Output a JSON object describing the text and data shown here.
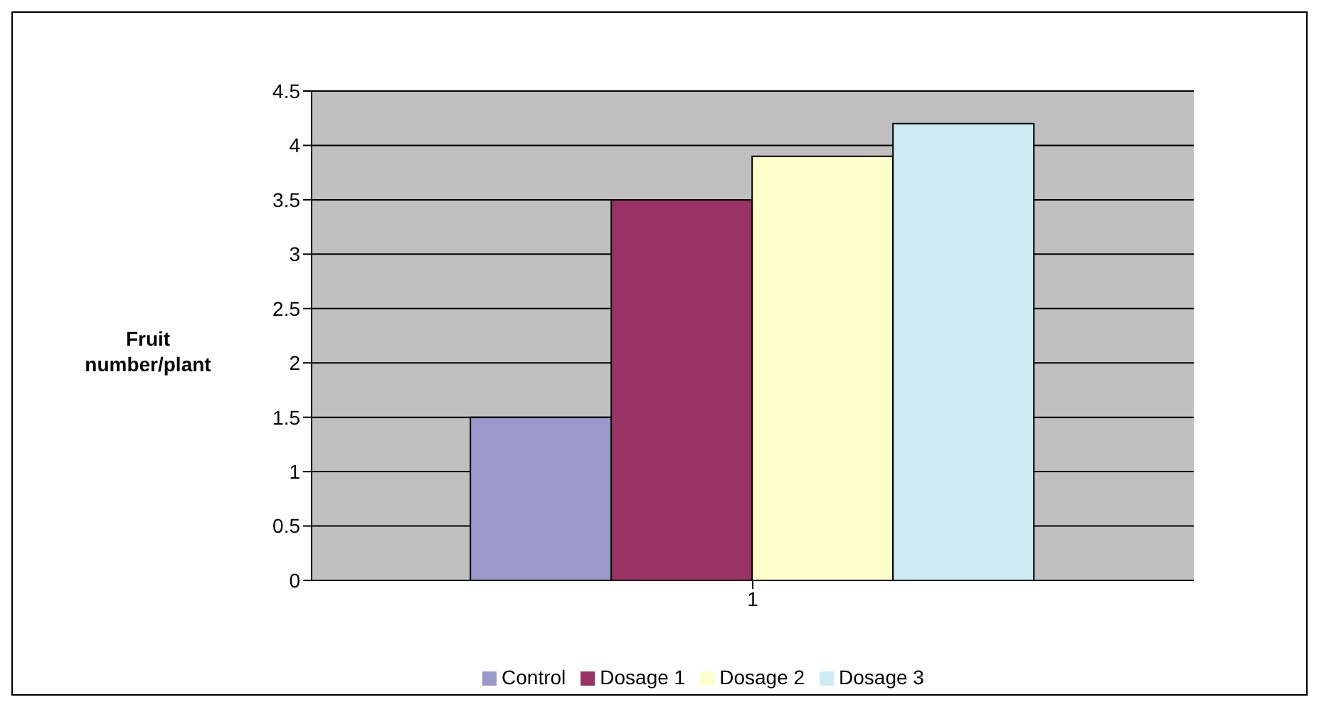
{
  "chart_data": {
    "type": "bar",
    "ylabel": "Fruit number/plant",
    "categories": [
      "1"
    ],
    "series": [
      {
        "name": "Control",
        "color": "#9999cc",
        "values": [
          1.5
        ]
      },
      {
        "name": "Dosage 1",
        "color": "#993366",
        "values": [
          3.5
        ]
      },
      {
        "name": "Dosage 2",
        "color": "#ffffcc",
        "values": [
          3.9
        ]
      },
      {
        "name": "Dosage 3",
        "color": "#ccecf4",
        "values": [
          4.2
        ]
      }
    ],
    "ylim": [
      0,
      4.5
    ],
    "yticks": [
      0,
      0.5,
      1,
      1.5,
      2,
      2.5,
      3,
      3.5,
      4,
      4.5
    ],
    "grid": "y",
    "legend": "bottom"
  }
}
